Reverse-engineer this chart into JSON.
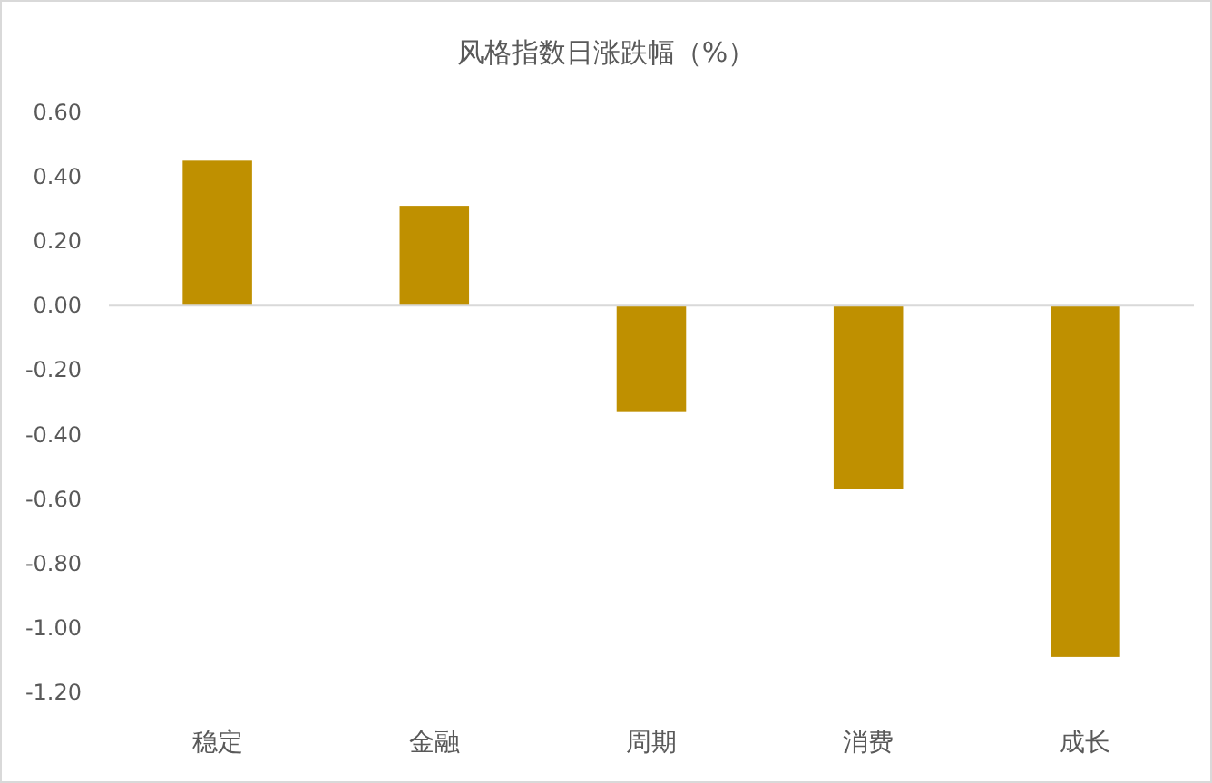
{
  "chart_data": {
    "type": "bar",
    "title": "风格指数日涨跌幅（%）",
    "categories": [
      "稳定",
      "金融",
      "周期",
      "消费",
      "成长"
    ],
    "values": [
      0.45,
      0.31,
      -0.33,
      -0.57,
      -1.09
    ],
    "color": "#bf9000",
    "ylim": [
      -1.2,
      0.6
    ],
    "yticks": [
      {
        "value": 0.6,
        "label": "0.60"
      },
      {
        "value": 0.4,
        "label": "0.40"
      },
      {
        "value": 0.2,
        "label": "0.20"
      },
      {
        "value": 0,
        "label": "0.00"
      },
      {
        "value": -0.2,
        "label": "-0.20"
      },
      {
        "value": -0.4,
        "label": "-0.40"
      },
      {
        "value": -0.6,
        "label": "-0.60"
      },
      {
        "value": -0.8,
        "label": "-0.80"
      },
      {
        "value": -1.0,
        "label": "-1.00"
      },
      {
        "value": -1.2,
        "label": "-1.20"
      }
    ]
  }
}
